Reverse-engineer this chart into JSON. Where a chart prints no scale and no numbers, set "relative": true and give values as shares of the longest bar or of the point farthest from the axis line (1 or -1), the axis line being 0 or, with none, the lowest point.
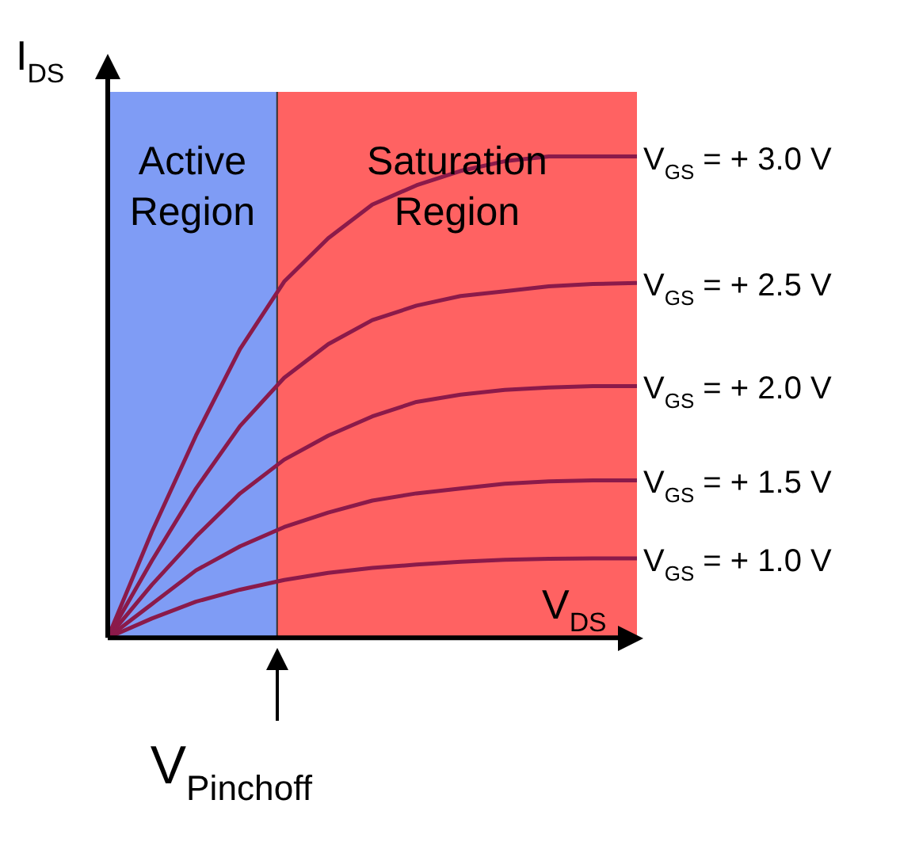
{
  "chart_data": {
    "type": "line",
    "relative": true,
    "legend": false,
    "marker": "none",
    "xlabel": "V$_{DS}$",
    "ylabel": "I$_{DS}$",
    "categories": [
      null,
      null,
      null,
      null,
      null,
      null,
      null,
      null,
      null,
      null,
      null,
      null,
      null
    ],
    "series": [
      {
        "name": "V$_{GS}$ = + 3.0 V",
        "color": "#8b1a4a",
        "values": [
          0,
          0.22,
          0.42,
          0.6,
          0.74,
          0.83,
          0.9,
          0.94,
          0.97,
          0.99,
          1.0,
          1.0,
          1.0
        ]
      },
      {
        "name": "V$_{GS}$ = + 2.5 V",
        "color": "#8b1a4a",
        "values": [
          0,
          0.16,
          0.31,
          0.44,
          0.54,
          0.61,
          0.66,
          0.69,
          0.71,
          0.72,
          0.73,
          0.735,
          0.737
        ]
      },
      {
        "name": "V$_{GS}$ = + 2.0 V",
        "color": "#8b1a4a",
        "values": [
          0,
          0.11,
          0.21,
          0.3,
          0.37,
          0.42,
          0.46,
          0.49,
          0.505,
          0.515,
          0.52,
          0.523,
          0.523
        ]
      },
      {
        "name": "V$_{GS}$ = + 1.5 V",
        "color": "#8b1a4a",
        "values": [
          0,
          0.07,
          0.14,
          0.19,
          0.23,
          0.26,
          0.285,
          0.3,
          0.31,
          0.32,
          0.325,
          0.327,
          0.327
        ]
      },
      {
        "name": "V$_{GS}$ = + 1.0 V",
        "color": "#8b1a4a",
        "values": [
          0,
          0.04,
          0.075,
          0.1,
          0.12,
          0.135,
          0.145,
          0.152,
          0.158,
          0.162,
          0.164,
          0.165,
          0.165
        ]
      }
    ],
    "annotations": [
      "Active Region",
      "Saturation Region",
      "V$_{Pinchoff}$"
    ]
  }
}
